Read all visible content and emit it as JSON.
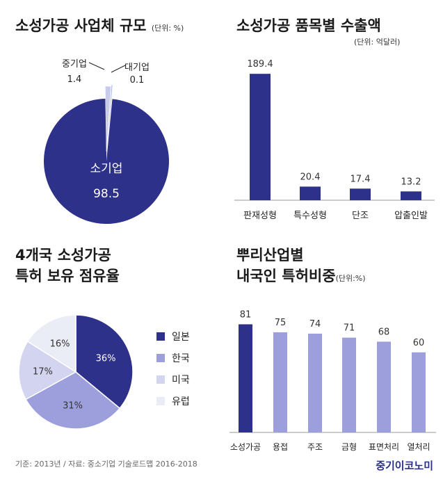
{
  "chart_data": [
    {
      "type": "pie",
      "title": "소성가공 사업체 규모",
      "unit": "(단위: %)",
      "slices": [
        {
          "label": "소기업",
          "value": 98.5,
          "color": "#2e3189"
        },
        {
          "label": "중기업",
          "value": 1.4,
          "color": "#c8cbea"
        },
        {
          "label": "대기업",
          "value": 0.1,
          "color": "#a6aadf"
        }
      ]
    },
    {
      "type": "bar",
      "title": "소성가공 품목별 수출액",
      "unit": "(단위: 억달러)",
      "categories": [
        "판재성형",
        "특수성형",
        "단조",
        "압출인발"
      ],
      "values": [
        189.4,
        20.4,
        17.4,
        13.2
      ],
      "value_labels": [
        "189.4",
        "20.4",
        "17.4",
        "13.2"
      ],
      "ylim": [
        0,
        200
      ],
      "color": "#2e3189"
    },
    {
      "type": "pie",
      "title_lines": [
        "4개국 소성가공",
        "특허 보유 점유율"
      ],
      "slices": [
        {
          "label": "일본",
          "value": 36,
          "value_label": "36%",
          "color": "#2e3189"
        },
        {
          "label": "한국",
          "value": 31,
          "value_label": "31%",
          "color": "#9c9fdc"
        },
        {
          "label": "미국",
          "value": 17,
          "value_label": "17%",
          "color": "#d3d5f0"
        },
        {
          "label": "유럽",
          "value": 16,
          "value_label": "16%",
          "color": "#eaecf6"
        }
      ],
      "legend": "right"
    },
    {
      "type": "bar",
      "title_lines": [
        "뿌리산업별",
        "내국인 특허비중"
      ],
      "unit": "(단위:%)",
      "categories": [
        "소성가공",
        "용접",
        "주조",
        "금형",
        "표면처리",
        "열처리"
      ],
      "values": [
        81,
        75,
        74,
        71,
        68,
        60
      ],
      "value_labels": [
        "81",
        "75",
        "74",
        "71",
        "68",
        "60"
      ],
      "ylim": [
        0,
        100
      ],
      "colors": [
        "#2e3189",
        "#9c9fdc",
        "#9c9fdc",
        "#9c9fdc",
        "#9c9fdc",
        "#9c9fdc"
      ]
    }
  ],
  "footer": "기준: 2013년  /  자료: 중소기업 기술로드맵 2016-2018",
  "brand": "중기이코노미"
}
